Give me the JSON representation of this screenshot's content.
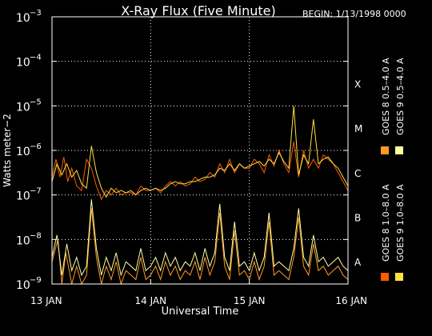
{
  "chart_data": {
    "type": "line",
    "title": "X-Ray Flux (Five Minute)",
    "begin_label": "BEGIN: 1/13/1998 0000",
    "xlabel": "Universal Time",
    "ylabel": "Watts meter−2",
    "y_scale": "log",
    "ylim": [
      1e-09,
      0.001
    ],
    "xlim_days": [
      0,
      3
    ],
    "grid": true,
    "x_ticks": [
      {
        "day": 0,
        "label": "13 JAN"
      },
      {
        "day": 1,
        "label": "14 JAN"
      },
      {
        "day": 2,
        "label": "15 JAN"
      },
      {
        "day": 3,
        "label": "16 JAN"
      }
    ],
    "y_ticks": [
      {
        "exp": -9,
        "base": "10",
        "sup": "−9"
      },
      {
        "exp": -8,
        "base": "10",
        "sup": "−8"
      },
      {
        "exp": -7,
        "base": "10",
        "sup": "−7"
      },
      {
        "exp": -6,
        "base": "10",
        "sup": "−6"
      },
      {
        "exp": -5,
        "base": "10",
        "sup": "−5"
      },
      {
        "exp": -4,
        "base": "10",
        "sup": "−4"
      },
      {
        "exp": -3,
        "base": "10",
        "sup": "−3"
      }
    ],
    "flare_classes": [
      {
        "label": "X",
        "exp": -4.5
      },
      {
        "label": "M",
        "exp": -5.5
      },
      {
        "label": "C",
        "exp": -6.5
      },
      {
        "label": "B",
        "exp": -7.5
      },
      {
        "label": "A",
        "exp": -8.5
      }
    ],
    "legend_placement": "right",
    "series": [
      {
        "name": "GOES 8 1.0–8.0 A",
        "color": "#ff5a00",
        "day": [
          0,
          0.04,
          0.08,
          0.12,
          0.16,
          0.2,
          0.25,
          0.3,
          0.35,
          0.4,
          0.45,
          0.5,
          0.55,
          0.6,
          0.65,
          0.7,
          0.75,
          0.8,
          0.85,
          0.9,
          0.95,
          1.0,
          1.05,
          1.1,
          1.15,
          1.2,
          1.25,
          1.3,
          1.35,
          1.4,
          1.45,
          1.5,
          1.55,
          1.6,
          1.65,
          1.7,
          1.75,
          1.8,
          1.85,
          1.9,
          1.95,
          2.0,
          2.05,
          2.1,
          2.15,
          2.2,
          2.25,
          2.3,
          2.35,
          2.4,
          2.45,
          2.5,
          2.55,
          2.6,
          2.65,
          2.7,
          2.75,
          2.8,
          2.85,
          2.9,
          2.95,
          3.0
        ],
        "log_flux": [
          -6.6,
          -6.2,
          -6.6,
          -6.15,
          -6.7,
          -6.4,
          -6.8,
          -6.9,
          -6.2,
          -6.4,
          -6.8,
          -7.1,
          -6.9,
          -7.0,
          -6.85,
          -7.0,
          -6.95,
          -6.95,
          -7.0,
          -6.8,
          -6.9,
          -6.9,
          -6.85,
          -6.95,
          -6.8,
          -6.7,
          -6.8,
          -6.7,
          -6.8,
          -6.75,
          -6.6,
          -6.7,
          -6.65,
          -6.5,
          -6.6,
          -6.3,
          -6.5,
          -6.2,
          -6.5,
          -6.3,
          -6.4,
          -6.4,
          -6.2,
          -6.3,
          -6.5,
          -6.1,
          -6.35,
          -6.0,
          -6.3,
          -6.5,
          -5.8,
          -6.6,
          -6.0,
          -6.4,
          -6.2,
          -6.4,
          -6.1,
          -6.2,
          -6.3,
          -6.5,
          -6.7,
          -6.9
        ]
      },
      {
        "name": "GOES 8 0.5–4.0 A",
        "color": "#ff9a20",
        "day": [
          0,
          0.06,
          0.1,
          0.14,
          0.2,
          0.25,
          0.3,
          0.35,
          0.4,
          0.45,
          0.5,
          0.55,
          0.6,
          0.65,
          0.7,
          0.75,
          0.8,
          0.85,
          0.9,
          0.95,
          1.0,
          1.05,
          1.1,
          1.15,
          1.2,
          1.25,
          1.3,
          1.35,
          1.4,
          1.45,
          1.5,
          1.55,
          1.6,
          1.65,
          1.7,
          1.75,
          1.8,
          1.85,
          1.9,
          1.95,
          2.0,
          2.05,
          2.1,
          2.15,
          2.2,
          2.25,
          2.3,
          2.35,
          2.4,
          2.45,
          2.5,
          2.55,
          2.6,
          2.65,
          2.7,
          2.75,
          2.8,
          2.85,
          2.9,
          2.95,
          3.0
        ],
        "log_flux": [
          -8.5,
          -8.0,
          -9.0,
          -8.3,
          -9.0,
          -8.6,
          -9.0,
          -8.8,
          -7.3,
          -8.4,
          -9.0,
          -8.6,
          -8.9,
          -8.5,
          -9.0,
          -8.7,
          -8.8,
          -8.9,
          -8.4,
          -8.9,
          -8.8,
          -8.6,
          -8.9,
          -8.5,
          -8.8,
          -8.6,
          -8.9,
          -8.7,
          -8.8,
          -8.5,
          -8.9,
          -8.4,
          -8.8,
          -8.5,
          -7.4,
          -8.6,
          -8.9,
          -7.8,
          -8.8,
          -8.7,
          -8.9,
          -8.5,
          -8.9,
          -8.6,
          -7.6,
          -8.8,
          -8.7,
          -8.8,
          -8.9,
          -8.4,
          -7.5,
          -8.6,
          -8.8,
          -8.1,
          -8.7,
          -8.6,
          -8.8,
          -8.7,
          -8.6,
          -8.8,
          -8.9
        ]
      },
      {
        "name": "GOES 9 1.0–8.0 A",
        "color": "#ffe040",
        "day": [
          0,
          0.05,
          0.1,
          0.15,
          0.2,
          0.25,
          0.3,
          0.35,
          0.4,
          0.45,
          0.5,
          0.55,
          0.6,
          0.65,
          0.7,
          0.75,
          0.8,
          0.85,
          0.9,
          0.95,
          1.0,
          1.05,
          1.1,
          1.15,
          1.2,
          1.25,
          1.3,
          1.35,
          1.4,
          1.45,
          1.5,
          1.55,
          1.6,
          1.65,
          1.7,
          1.75,
          1.8,
          1.85,
          1.9,
          1.95,
          2.0,
          2.05,
          2.1,
          2.15,
          2.2,
          2.25,
          2.3,
          2.35,
          2.4,
          2.45,
          2.5,
          2.55,
          2.6,
          2.65,
          2.7,
          2.75,
          2.8,
          2.85,
          2.9,
          2.95,
          3.0
        ],
        "log_flux": [
          -6.7,
          -6.3,
          -6.55,
          -6.3,
          -6.6,
          -6.45,
          -6.75,
          -6.85,
          -5.9,
          -6.5,
          -6.85,
          -7.05,
          -6.85,
          -6.95,
          -6.9,
          -6.95,
          -6.9,
          -7.0,
          -6.9,
          -6.85,
          -6.9,
          -6.85,
          -6.9,
          -6.85,
          -6.75,
          -6.7,
          -6.75,
          -6.75,
          -6.7,
          -6.7,
          -6.65,
          -6.6,
          -6.6,
          -6.55,
          -6.4,
          -6.45,
          -6.3,
          -6.45,
          -6.3,
          -6.4,
          -6.35,
          -6.3,
          -6.25,
          -6.35,
          -6.2,
          -6.3,
          -6.05,
          -6.25,
          -6.4,
          -5.0,
          -6.55,
          -6.1,
          -6.3,
          -5.3,
          -6.3,
          -6.2,
          -6.15,
          -6.3,
          -6.4,
          -6.6,
          -6.8
        ]
      },
      {
        "name": "GOES 9 0.5–4.0 A",
        "color": "#ffffa0",
        "day": [
          0,
          0.05,
          0.1,
          0.15,
          0.2,
          0.25,
          0.3,
          0.35,
          0.4,
          0.45,
          0.5,
          0.55,
          0.6,
          0.65,
          0.7,
          0.75,
          0.8,
          0.85,
          0.9,
          0.95,
          1.0,
          1.05,
          1.1,
          1.15,
          1.2,
          1.25,
          1.3,
          1.35,
          1.4,
          1.45,
          1.5,
          1.55,
          1.6,
          1.65,
          1.7,
          1.75,
          1.8,
          1.85,
          1.9,
          1.95,
          2.0,
          2.05,
          2.1,
          2.15,
          2.2,
          2.25,
          2.3,
          2.35,
          2.4,
          2.45,
          2.5,
          2.55,
          2.6,
          2.65,
          2.7,
          2.75,
          2.8,
          2.85,
          2.9,
          2.95,
          3.0
        ],
        "log_flux": [
          -8.4,
          -7.9,
          -8.8,
          -8.1,
          -8.7,
          -8.4,
          -8.8,
          -8.6,
          -7.1,
          -8.2,
          -8.8,
          -8.4,
          -8.7,
          -8.3,
          -8.8,
          -8.5,
          -8.6,
          -8.7,
          -8.2,
          -8.7,
          -8.6,
          -8.4,
          -8.7,
          -8.3,
          -8.6,
          -8.4,
          -8.7,
          -8.5,
          -8.6,
          -8.3,
          -8.7,
          -8.2,
          -8.6,
          -8.3,
          -7.2,
          -8.4,
          -8.7,
          -7.6,
          -8.6,
          -8.5,
          -8.7,
          -8.3,
          -8.7,
          -8.4,
          -7.4,
          -8.6,
          -8.5,
          -8.6,
          -8.7,
          -8.2,
          -7.3,
          -8.4,
          -8.6,
          -7.9,
          -8.5,
          -8.4,
          -8.6,
          -8.5,
          -8.4,
          -8.6,
          -8.7
        ]
      }
    ]
  }
}
